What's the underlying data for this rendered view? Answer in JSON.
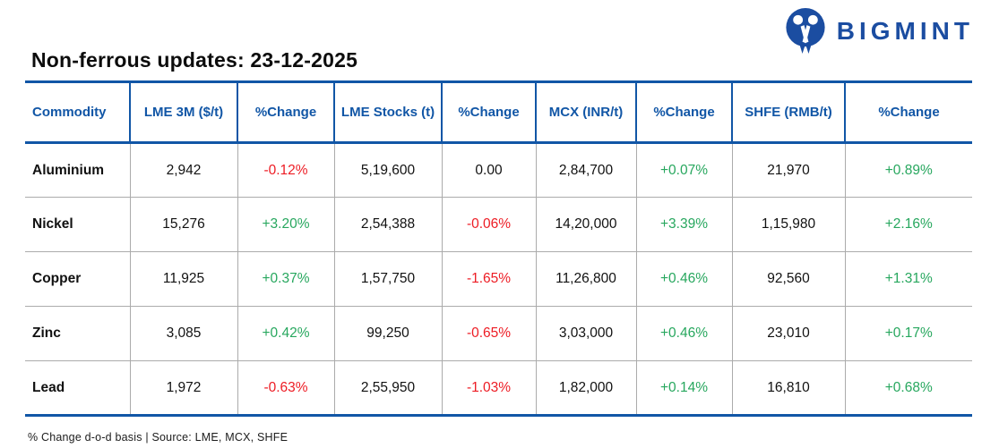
{
  "logo": {
    "brand": "BIGMINT",
    "icon": "bigmint-circle-people-icon"
  },
  "title": "Non-ferrous updates: 23-12-2025",
  "chart_data": {
    "type": "table",
    "title": "Non-ferrous updates: 23-12-2025",
    "columns": [
      "Commodity",
      "LME 3M ($/t)",
      "%Change",
      "LME Stocks (t)",
      "%Change",
      "MCX (INR/t)",
      "%Change",
      "SHFE (RMB/t)",
      "%Change"
    ],
    "change_column_indexes": [
      2,
      4,
      6,
      8
    ],
    "rows": [
      [
        "Aluminium",
        "2,942",
        "-0.12%",
        "5,19,600",
        "0.00",
        "2,84,700",
        "+0.07%",
        "21,970",
        "+0.89%"
      ],
      [
        "Nickel",
        "15,276",
        "+3.20%",
        "2,54,388",
        "-0.06%",
        "14,20,000",
        "+3.39%",
        "1,15,980",
        "+2.16%"
      ],
      [
        "Copper",
        "11,925",
        "+0.37%",
        "1,57,750",
        "-1.65%",
        "11,26,800",
        "+0.46%",
        "92,560",
        "+1.31%"
      ],
      [
        "Zinc",
        "3,085",
        "+0.42%",
        "99,250",
        "-0.65%",
        "3,03,000",
        "+0.46%",
        "23,010",
        "+0.17%"
      ],
      [
        "Lead",
        "1,972",
        "-0.63%",
        "2,55,950",
        "-1.03%",
        "1,82,000",
        "+0.14%",
        "16,810",
        "+0.68%"
      ]
    ]
  },
  "footer": {
    "note": "% Change d-o-d basis | Source: LME, MCX, SHFE"
  },
  "colors": {
    "accent_navy": "#1156A6",
    "logo_blue": "#1B4DA1",
    "positive_green": "#27A75E",
    "negative_red": "#ED1C24",
    "grid_gray": "#ABABAB"
  }
}
